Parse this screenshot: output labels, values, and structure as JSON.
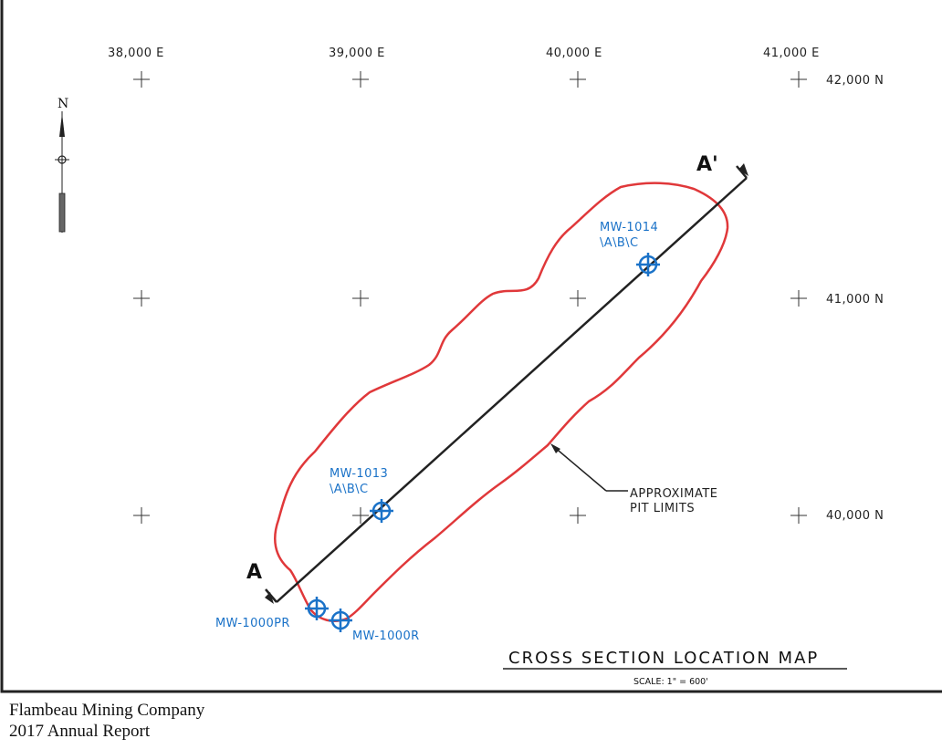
{
  "map": {
    "title": "CROSS SECTION LOCATION MAP",
    "scale": "SCALE: 1\" = 600'",
    "north_label": "N",
    "grid": {
      "easting_labels": [
        "38,000 E",
        "39,000 E",
        "40,000 E",
        "41,000 E"
      ],
      "northing_labels": [
        "42,000 N",
        "41,000 N",
        "40,000 N"
      ]
    },
    "section_line": {
      "start_label": "A",
      "end_label": "A'"
    },
    "pit_outline_label": [
      "APPROXIMATE",
      "PIT LIMITS"
    ],
    "wells": [
      {
        "line1": "MW-1014",
        "line2": "\\A\\B\\C"
      },
      {
        "line1": "MW-1013",
        "line2": "\\A\\B\\C"
      },
      {
        "line1": "MW-1000PR",
        "line2": ""
      },
      {
        "line1": "MW-1000R",
        "line2": ""
      }
    ],
    "colors": {
      "pit_outline": "#e0383a",
      "well": "#1a72c8",
      "line": "#222222"
    }
  },
  "footer": {
    "company": "Flambeau Mining Company",
    "report": "2017 Annual Report"
  }
}
